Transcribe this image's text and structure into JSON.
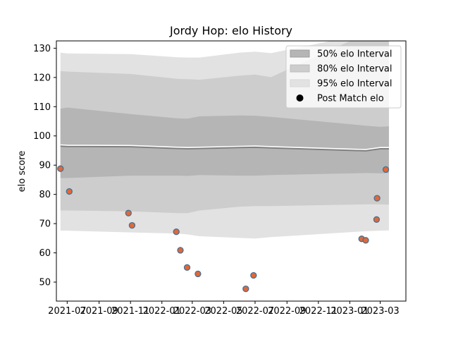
{
  "chart_data": {
    "type": "line",
    "title": "Jordy Hop: elo History",
    "xlabel": "",
    "ylabel": "elo score",
    "xlim": [
      "2021-06-10",
      "2023-04-20"
    ],
    "ylim": [
      43.5,
      132.5
    ],
    "x_ticks": [
      "2021-07",
      "2021-09",
      "2021-11",
      "2022-01",
      "2022-03",
      "2022-05",
      "2022-07",
      "2022-09",
      "2022-11",
      "2023-01",
      "2023-03"
    ],
    "y_ticks": [
      50,
      60,
      70,
      80,
      90,
      100,
      110,
      120,
      130
    ],
    "grid": false,
    "legend_position": "top-right",
    "band_dates": [
      "2021-06-18",
      "2021-07-01",
      "2021-11-01",
      "2022-02-01",
      "2022-02-20",
      "2022-03-15",
      "2022-06-01",
      "2022-07-01",
      "2022-08-01",
      "2023-02-01",
      "2023-03-01",
      "2023-03-18"
    ],
    "series": [
      {
        "name": "95% elo Interval",
        "color": "#e2e2e2",
        "upper": [
          128.5,
          128.2,
          128.0,
          126.9,
          126.8,
          126.8,
          128.5,
          128.8,
          128.3,
          null,
          null,
          null
        ],
        "lower": [
          67.6,
          67.6,
          67.0,
          66.6,
          66.3,
          65.7,
          65.1,
          64.9,
          65.4,
          67.4,
          67.6,
          67.7
        ]
      },
      {
        "name": "80% elo Interval",
        "color": "#cdcdcd",
        "upper": [
          122.2,
          122.0,
          121.2,
          119.5,
          119.4,
          119.2,
          120.6,
          121.0,
          120.1,
          null,
          null,
          null
        ],
        "lower": [
          74.5,
          74.5,
          74.2,
          73.6,
          73.6,
          74.5,
          75.8,
          76.0,
          76.0,
          76.6,
          76.6,
          76.5
        ]
      },
      {
        "name": "50% elo Interval",
        "color": "#b5b5b5",
        "upper": [
          109.3,
          109.7,
          107.5,
          106.0,
          105.9,
          106.7,
          107.0,
          106.9,
          106.5,
          103.5,
          103.1,
          103.3
        ],
        "lower": [
          85.6,
          85.6,
          86.4,
          86.4,
          86.3,
          86.6,
          86.4,
          86.4,
          86.6,
          87.3,
          87.2,
          87.3
        ]
      }
    ],
    "mean_line": {
      "color": "#808080",
      "values": [
        96.5,
        96.4,
        96.3,
        95.7,
        95.6,
        95.7,
        96.0,
        96.1,
        95.9,
        94.9,
        95.6,
        95.6
      ]
    },
    "post_match": {
      "name": "Post Match elo",
      "fill": "#e0683a",
      "edge": "#4a6f8f",
      "points": [
        {
          "x": "2021-06-18",
          "y": 88.8
        },
        {
          "x": "2021-07-05",
          "y": 81.0
        },
        {
          "x": "2021-10-28",
          "y": 73.6
        },
        {
          "x": "2021-11-04",
          "y": 69.4
        },
        {
          "x": "2022-01-29",
          "y": 67.2
        },
        {
          "x": "2022-02-06",
          "y": 60.9
        },
        {
          "x": "2022-02-19",
          "y": 55.0
        },
        {
          "x": "2022-03-12",
          "y": 52.8
        },
        {
          "x": "2022-06-13",
          "y": 47.7
        },
        {
          "x": "2022-06-28",
          "y": 52.3
        },
        {
          "x": "2023-01-24",
          "y": 64.8
        },
        {
          "x": "2023-02-01",
          "y": 64.3
        },
        {
          "x": "2023-02-22",
          "y": 71.4
        },
        {
          "x": "2023-02-23",
          "y": 78.7
        },
        {
          "x": "2023-03-12",
          "y": 88.5
        }
      ]
    },
    "legend": [
      {
        "label": "50% elo Interval",
        "kind": "band",
        "color": "#b5b5b5",
        "edge": "#a0a0a0"
      },
      {
        "label": "80% elo Interval",
        "kind": "band",
        "color": "#cdcdcd",
        "edge": "#bdbdbd"
      },
      {
        "label": "95% elo Interval",
        "kind": "band",
        "color": "#e2e2e2",
        "edge": "#d8d8d8"
      },
      {
        "label": "Post Match elo",
        "kind": "marker",
        "color": "#000000"
      }
    ]
  }
}
